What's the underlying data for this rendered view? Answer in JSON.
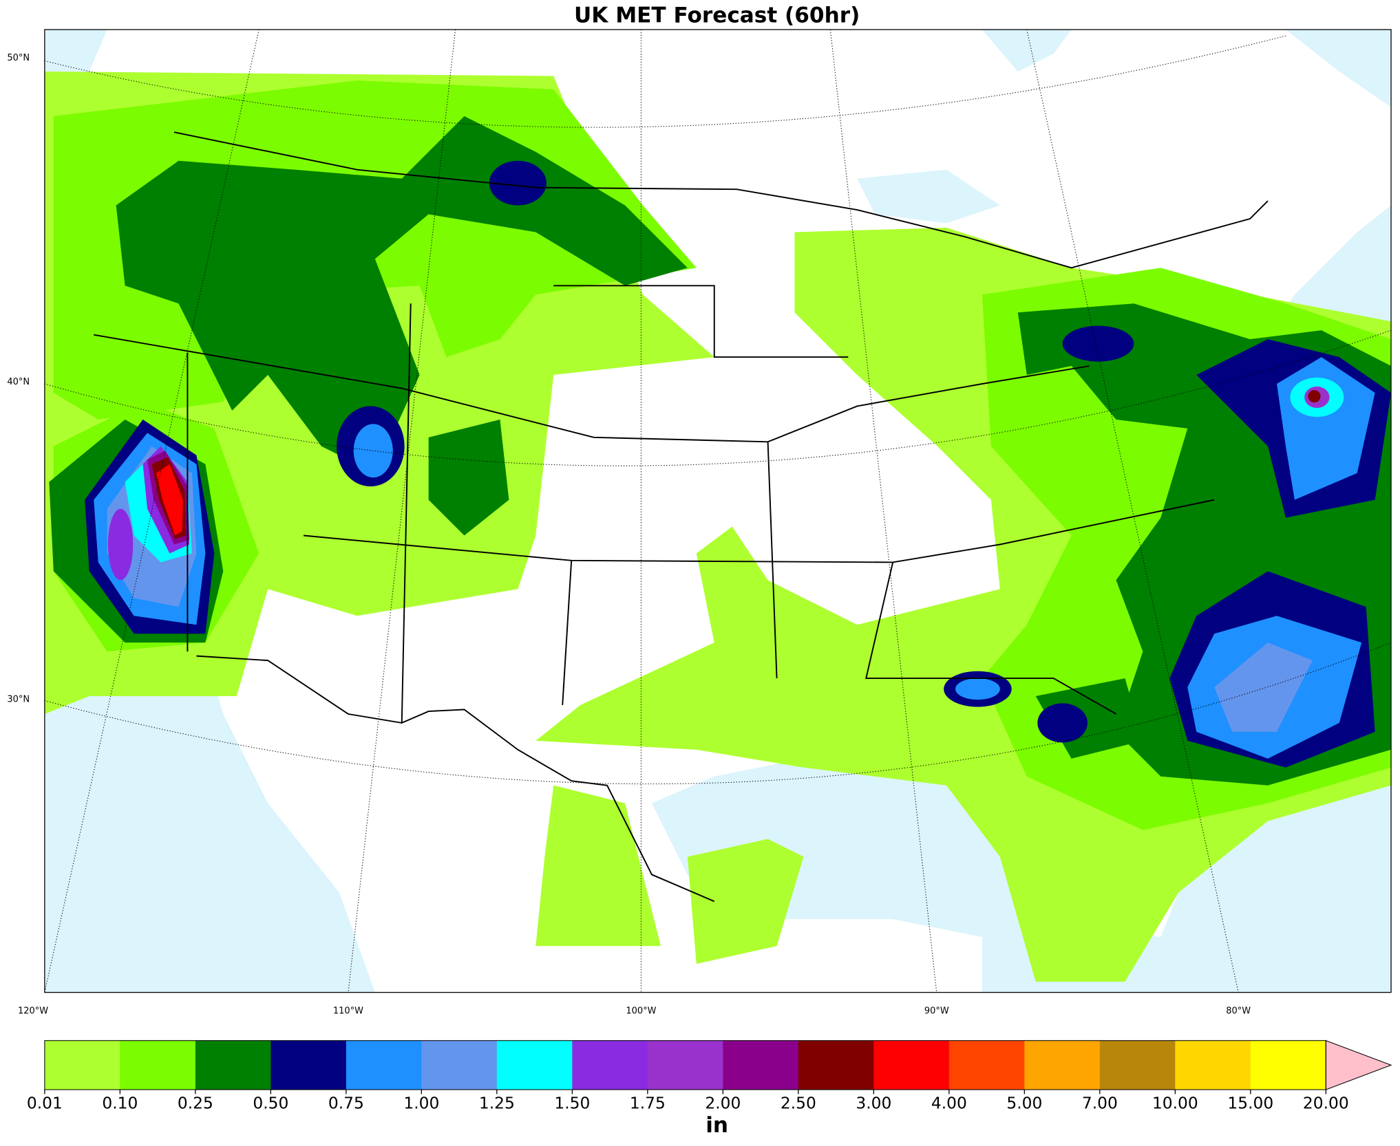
{
  "map": {
    "title": "UK MET Forecast (60hr)",
    "lat_labels": [
      "50°N",
      "40°N",
      "30°N"
    ],
    "lon_labels": [
      "120°W",
      "110°W",
      "100°W",
      "90°W",
      "80°W"
    ],
    "colorbar": {
      "boundaries": [
        0.01,
        {
          "value": 0.1,
          "label": "0.10"
        },
        0.25,
        {
          "value": 0.5,
          "label": "0.50"
        },
        0.75,
        {
          "value": 1,
          "label": "1.00"
        },
        1.25,
        {
          "value": 1.5,
          "label": "1.50"
        },
        1.75,
        {
          "value": 2,
          "label": "2.00"
        },
        {
          "value": 2.5,
          "label": "2.50"
        },
        {
          "value": 3,
          "label": "3.00"
        },
        {
          "value": 4,
          "label": "4.00"
        },
        {
          "value": 5,
          "label": "5.00"
        },
        {
          "value": 7,
          "label": "7.00"
        },
        {
          "value": 10,
          "label": "10.00"
        },
        {
          "value": 15,
          "label": "15.00"
        },
        {
          "value": 20,
          "label": "20.00"
        }
      ],
      "colors": [
        "#adff2f",
        "#7cfc00",
        "#008000",
        "#000080",
        "#1e90ff",
        "#6495ed",
        "#00ffff",
        "#8a2be2",
        "#9932cc",
        "#8b008b",
        "#800000",
        "#ff0000",
        "#ff4500",
        "#ffa500",
        "#b8860b",
        "#ffd700",
        "#ffff00"
      ],
      "extend_color": "#ffc0cb",
      "unit": "in"
    }
  }
}
